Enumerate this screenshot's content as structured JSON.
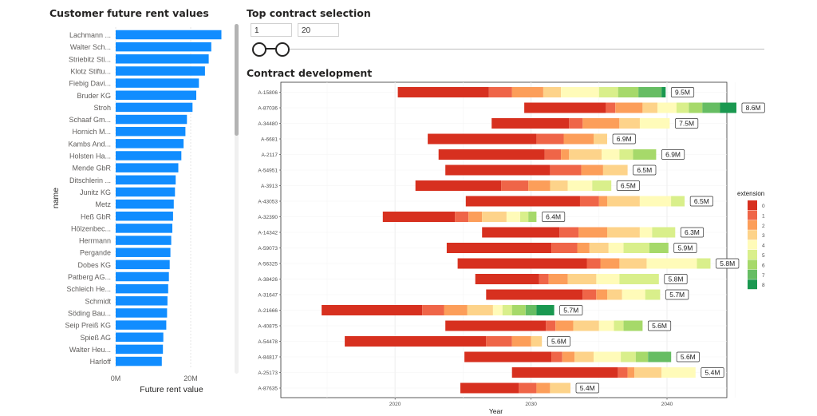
{
  "left_panel": {
    "title": "Customer future rent values"
  },
  "selection": {
    "title": "Top contract selection",
    "min_value": "1",
    "max_value": "20"
  },
  "dev_panel": {
    "title": "Contract development"
  },
  "colors": {
    "bar": "#118dff",
    "extension": [
      "#d7301f",
      "#ef6548",
      "#fc9e5a",
      "#fdd38a",
      "#fffbb9",
      "#d9ef8b",
      "#a6d96a",
      "#66bd63",
      "#1a9850"
    ]
  },
  "chart_data": [
    {
      "type": "bar",
      "orientation": "horizontal",
      "title": "Customer future rent values",
      "xlabel": "Future rent value",
      "ylabel": "name",
      "xlim": [
        0,
        30000000
      ],
      "xticks": [
        {
          "value": 0,
          "label": "0M"
        },
        {
          "value": 20000000,
          "label": "20M"
        }
      ],
      "categories": [
        "Lachmann ...",
        "Walter Sch...",
        "Striebitz Sti...",
        "Klotz Stiftu...",
        "Fiebig Davi...",
        "Bruder KG",
        "Stroh",
        "Schaaf Gm...",
        "Hornich M...",
        "Kambs And...",
        "Holsten Ha...",
        "Mende GbR",
        "Ditschlerin ...",
        "Junitz KG",
        "Metz",
        "Heß GbR",
        "Hölzenbec...",
        "Herrmann",
        "Pergande",
        "Dobes KG",
        "Patberg AG...",
        "Schleich He...",
        "Schmidt",
        "Söding Bau...",
        "Seip Preiß KG",
        "Spieß AG",
        "Walter Heu...",
        "Harloff"
      ],
      "values": [
        28200000,
        25500000,
        24800000,
        23800000,
        22200000,
        21500000,
        20500000,
        19000000,
        18600000,
        18100000,
        17500000,
        16700000,
        16000000,
        15800000,
        15500000,
        15300000,
        15100000,
        14800000,
        14600000,
        14400000,
        14200000,
        14000000,
        13800000,
        13700000,
        13500000,
        12700000,
        12600000,
        12300000
      ]
    },
    {
      "type": "bar",
      "stacked": true,
      "orientation": "horizontal",
      "title": "Contract development",
      "xlabel": "Year",
      "xlim": [
        2011.6,
        2044.4
      ],
      "xticks": [
        2020,
        2030,
        2040
      ],
      "legend": {
        "title": "extension",
        "placement": "right",
        "labels": [
          "0",
          "1",
          "2",
          "3",
          "4",
          "5",
          "6",
          "7",
          "8"
        ]
      },
      "rows": [
        {
          "id": "A-15806",
          "label": "9.5M",
          "segments": [
            [
              2020.2,
              2026.9,
              0
            ],
            [
              2026.9,
              2028.6,
              1
            ],
            [
              2028.6,
              2030.9,
              2
            ],
            [
              2030.9,
              2032.2,
              3
            ],
            [
              2032.2,
              2035.0,
              4
            ],
            [
              2035.0,
              2036.4,
              5
            ],
            [
              2036.4,
              2037.9,
              6
            ],
            [
              2037.9,
              2039.6,
              7
            ],
            [
              2039.6,
              2039.9,
              8
            ]
          ]
        },
        {
          "id": "A-87036",
          "label": "8.6M",
          "segments": [
            [
              2029.5,
              2035.5,
              0
            ],
            [
              2035.5,
              2036.2,
              1
            ],
            [
              2036.2,
              2038.2,
              2
            ],
            [
              2038.2,
              2039.3,
              3
            ],
            [
              2039.3,
              2040.7,
              4
            ],
            [
              2040.7,
              2041.6,
              5
            ],
            [
              2041.6,
              2042.6,
              6
            ],
            [
              2042.6,
              2043.9,
              7
            ],
            [
              2043.9,
              2045.1,
              8
            ]
          ]
        },
        {
          "id": "A-34480",
          "label": "7.5M",
          "segments": [
            [
              2027.1,
              2032.8,
              0
            ],
            [
              2032.8,
              2033.8,
              1
            ],
            [
              2033.8,
              2036.5,
              2
            ],
            [
              2036.5,
              2038.0,
              3
            ],
            [
              2038.0,
              2040.2,
              4
            ]
          ]
        },
        {
          "id": "A-6681",
          "label": "6.9M",
          "segments": [
            [
              2022.4,
              2030.4,
              0
            ],
            [
              2030.4,
              2032.4,
              1
            ],
            [
              2032.4,
              2034.6,
              2
            ],
            [
              2034.6,
              2035.6,
              3
            ]
          ]
        },
        {
          "id": "A-2117",
          "label": "6.9M",
          "segments": [
            [
              2023.2,
              2031.0,
              0
            ],
            [
              2031.0,
              2032.2,
              1
            ],
            [
              2032.2,
              2032.8,
              2
            ],
            [
              2032.8,
              2035.2,
              3
            ],
            [
              2035.2,
              2036.5,
              4
            ],
            [
              2036.5,
              2037.5,
              5
            ],
            [
              2037.5,
              2039.2,
              6
            ]
          ]
        },
        {
          "id": "A-54951",
          "label": "6.5M",
          "segments": [
            [
              2023.7,
              2031.4,
              0
            ],
            [
              2031.4,
              2033.7,
              1
            ],
            [
              2033.7,
              2035.3,
              2
            ],
            [
              2035.3,
              2037.1,
              3
            ]
          ]
        },
        {
          "id": "A-3913",
          "label": "6.5M",
          "segments": [
            [
              2021.5,
              2027.8,
              0
            ],
            [
              2027.8,
              2029.8,
              1
            ],
            [
              2029.8,
              2031.4,
              2
            ],
            [
              2031.4,
              2032.7,
              3
            ],
            [
              2032.7,
              2034.5,
              4
            ],
            [
              2034.5,
              2035.9,
              5
            ]
          ]
        },
        {
          "id": "A-43053",
          "label": "6.5M",
          "segments": [
            [
              2025.2,
              2033.6,
              0
            ],
            [
              2033.6,
              2035.0,
              1
            ],
            [
              2035.0,
              2035.6,
              2
            ],
            [
              2035.6,
              2038.0,
              3
            ],
            [
              2038.0,
              2040.3,
              4
            ],
            [
              2040.3,
              2041.3,
              5
            ]
          ]
        },
        {
          "id": "A-32390",
          "label": "6.4M",
          "segments": [
            [
              2019.1,
              2024.4,
              0
            ],
            [
              2024.4,
              2025.4,
              1
            ],
            [
              2025.4,
              2026.4,
              2
            ],
            [
              2026.4,
              2028.2,
              3
            ],
            [
              2028.2,
              2029.2,
              4
            ],
            [
              2029.2,
              2029.8,
              5
            ],
            [
              2029.8,
              2030.4,
              6
            ]
          ]
        },
        {
          "id": "A-14342",
          "label": "6.3M",
          "segments": [
            [
              2026.4,
              2032.1,
              0
            ],
            [
              2032.1,
              2033.5,
              1
            ],
            [
              2033.5,
              2035.6,
              2
            ],
            [
              2035.6,
              2038.0,
              3
            ],
            [
              2038.0,
              2038.9,
              4
            ],
            [
              2038.9,
              2040.6,
              5
            ]
          ]
        },
        {
          "id": "A-59073",
          "label": "5.9M",
          "segments": [
            [
              2023.8,
              2031.5,
              0
            ],
            [
              2031.5,
              2033.4,
              1
            ],
            [
              2033.4,
              2034.3,
              2
            ],
            [
              2034.3,
              2035.7,
              3
            ],
            [
              2035.7,
              2036.8,
              4
            ],
            [
              2036.8,
              2038.7,
              5
            ],
            [
              2038.7,
              2040.1,
              6
            ]
          ]
        },
        {
          "id": "A-56325",
          "label": "5.8M",
          "segments": [
            [
              2024.6,
              2034.1,
              0
            ],
            [
              2034.1,
              2035.1,
              1
            ],
            [
              2035.1,
              2036.5,
              2
            ],
            [
              2036.5,
              2038.5,
              3
            ],
            [
              2038.5,
              2042.2,
              4
            ],
            [
              2042.2,
              2043.2,
              5
            ]
          ]
        },
        {
          "id": "A-38426",
          "label": "5.8M",
          "segments": [
            [
              2025.9,
              2030.6,
              0
            ],
            [
              2030.6,
              2031.3,
              1
            ],
            [
              2031.3,
              2032.7,
              2
            ],
            [
              2032.7,
              2034.8,
              3
            ],
            [
              2034.8,
              2036.5,
              4
            ],
            [
              2036.5,
              2039.4,
              5
            ]
          ]
        },
        {
          "id": "A-31647",
          "label": "5.7M",
          "segments": [
            [
              2026.7,
              2033.8,
              0
            ],
            [
              2033.8,
              2034.8,
              1
            ],
            [
              2034.8,
              2035.6,
              2
            ],
            [
              2035.6,
              2036.7,
              3
            ],
            [
              2036.7,
              2038.4,
              4
            ],
            [
              2038.4,
              2039.5,
              5
            ]
          ]
        },
        {
          "id": "A-21666",
          "label": "5.7M",
          "segments": [
            [
              2014.6,
              2022.0,
              0
            ],
            [
              2022.0,
              2023.6,
              1
            ],
            [
              2023.6,
              2025.3,
              2
            ],
            [
              2025.3,
              2027.2,
              3
            ],
            [
              2027.2,
              2027.9,
              4
            ],
            [
              2027.9,
              2028.6,
              5
            ],
            [
              2028.6,
              2029.6,
              6
            ],
            [
              2029.6,
              2030.4,
              7
            ],
            [
              2030.4,
              2031.7,
              8
            ]
          ]
        },
        {
          "id": "A-40875",
          "label": "5.6M",
          "segments": [
            [
              2023.7,
              2031.1,
              0
            ],
            [
              2031.1,
              2031.8,
              1
            ],
            [
              2031.8,
              2033.1,
              2
            ],
            [
              2033.1,
              2035.0,
              3
            ],
            [
              2035.0,
              2036.1,
              4
            ],
            [
              2036.1,
              2036.8,
              5
            ],
            [
              2036.8,
              2038.2,
              6
            ]
          ]
        },
        {
          "id": "A-54478",
          "label": "5.6M",
          "segments": [
            [
              2016.3,
              2026.7,
              0
            ],
            [
              2026.7,
              2028.6,
              1
            ],
            [
              2028.6,
              2030.0,
              2
            ],
            [
              2030.0,
              2030.8,
              3
            ]
          ]
        },
        {
          "id": "A-84817",
          "label": "5.6M",
          "segments": [
            [
              2025.1,
              2031.5,
              0
            ],
            [
              2031.5,
              2032.3,
              1
            ],
            [
              2032.3,
              2033.2,
              2
            ],
            [
              2033.2,
              2034.6,
              3
            ],
            [
              2034.6,
              2036.6,
              4
            ],
            [
              2036.6,
              2037.7,
              5
            ],
            [
              2037.7,
              2038.6,
              6
            ],
            [
              2038.6,
              2040.3,
              7
            ]
          ]
        },
        {
          "id": "A-25173",
          "label": "5.4M",
          "segments": [
            [
              2028.6,
              2036.4,
              0
            ],
            [
              2036.4,
              2037.1,
              1
            ],
            [
              2037.1,
              2037.6,
              2
            ],
            [
              2037.6,
              2039.6,
              3
            ],
            [
              2039.6,
              2042.1,
              4
            ]
          ]
        },
        {
          "id": "A-87635",
          "label": "5.4M",
          "segments": [
            [
              2024.8,
              2029.1,
              0
            ],
            [
              2029.1,
              2030.4,
              1
            ],
            [
              2030.4,
              2031.4,
              2
            ],
            [
              2031.4,
              2032.9,
              3
            ]
          ]
        }
      ]
    }
  ]
}
